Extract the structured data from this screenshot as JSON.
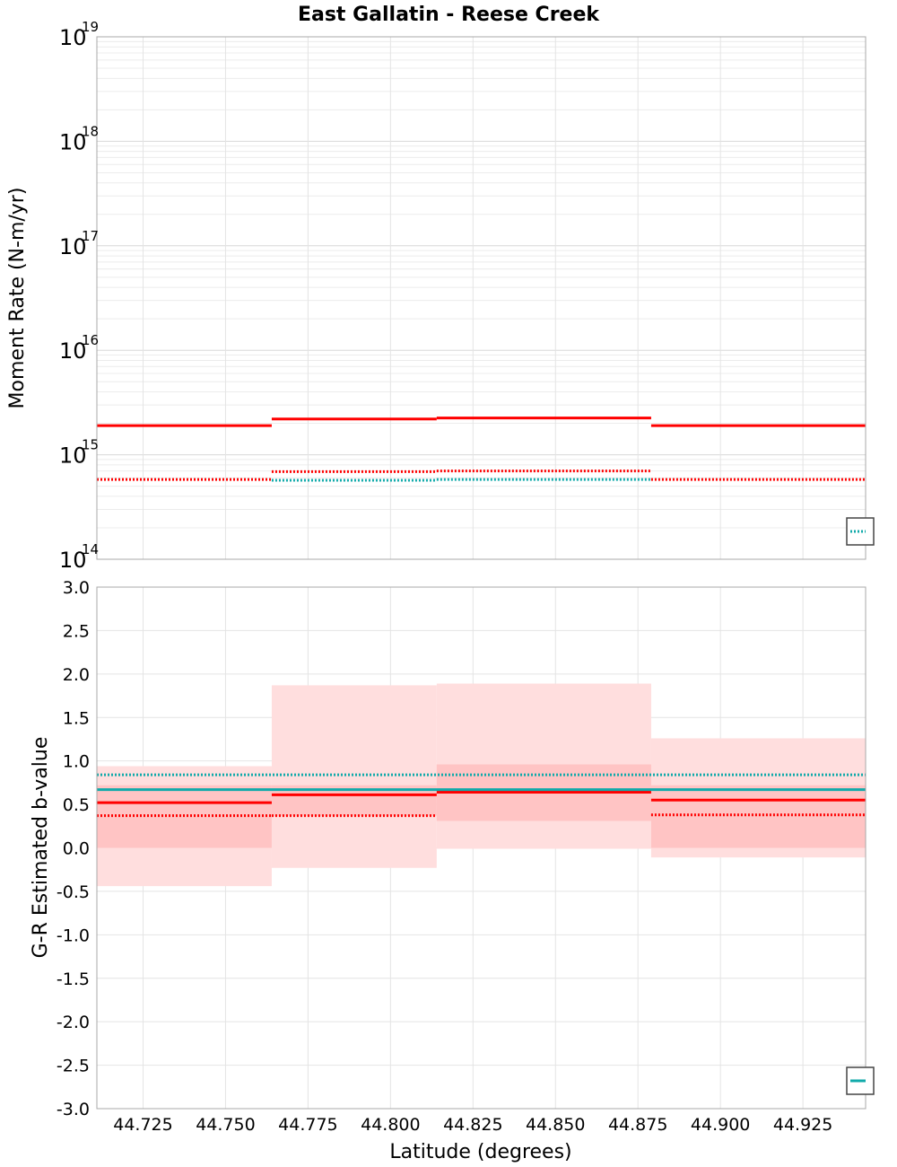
{
  "chart_data": {
    "title": "East Gallatin - Reese Creek",
    "xlabel": "Latitude (degrees)",
    "xlim": [
      44.711,
      44.944
    ],
    "x_ticks": [
      "44.725",
      "44.750",
      "44.775",
      "44.800",
      "44.825",
      "44.850",
      "44.875",
      "44.900",
      "44.925"
    ],
    "x_tick_values": [
      44.725,
      44.75,
      44.775,
      44.8,
      44.825,
      44.85,
      44.875,
      44.9,
      44.925
    ],
    "panels": [
      {
        "id": "moment",
        "type": "step-line",
        "scale": "log",
        "ylabel": "Moment Rate (N-m/yr)",
        "ylim_exp": [
          14,
          19
        ],
        "y_ticks": [
          {
            "base": "10",
            "exp": "19",
            "value_exp": 19
          },
          {
            "base": "10",
            "exp": "18",
            "value_exp": 18
          },
          {
            "base": "10",
            "exp": "17",
            "value_exp": 17
          },
          {
            "base": "10",
            "exp": "16",
            "value_exp": 16
          },
          {
            "base": "10",
            "exp": "15",
            "value_exp": 15
          },
          {
            "base": "10",
            "exp": "14",
            "value_exp": 14
          }
        ],
        "series": [
          {
            "name": "solid-red",
            "color": "#ff0000",
            "style": "solid",
            "segments": [
              {
                "x0": 44.711,
                "x1": 44.764,
                "y": 1900000000000000.0
              },
              {
                "x0": 44.764,
                "x1": 44.814,
                "y": 2200000000000000.0
              },
              {
                "x0": 44.814,
                "x1": 44.879,
                "y": 2250000000000000.0
              },
              {
                "x0": 44.879,
                "x1": 44.944,
                "y": 1900000000000000.0
              }
            ]
          },
          {
            "name": "dotted-red",
            "color": "#ff0000",
            "style": "dotted",
            "segments": [
              {
                "x0": 44.711,
                "x1": 44.764,
                "y": 580000000000000.0
              },
              {
                "x0": 44.764,
                "x1": 44.814,
                "y": 690000000000000.0
              },
              {
                "x0": 44.814,
                "x1": 44.879,
                "y": 700000000000000.0
              },
              {
                "x0": 44.879,
                "x1": 44.944,
                "y": 580000000000000.0
              }
            ]
          },
          {
            "name": "dotted-teal",
            "color": "#11aaaa",
            "style": "dotted",
            "segments": [
              {
                "x0": 44.764,
                "x1": 44.814,
                "y": 570000000000000.0
              },
              {
                "x0": 44.814,
                "x1": 44.879,
                "y": 580000000000000.0
              }
            ]
          }
        ],
        "legend": {
          "placement": "bottom-right",
          "color": "#11aaaa",
          "style": "dotted"
        }
      },
      {
        "id": "bvalue",
        "type": "step-line",
        "scale": "linear",
        "ylabel": "G-R Estimated b-value",
        "ylim": [
          -3.0,
          3.0
        ],
        "y_ticks": [
          "3.0",
          "2.5",
          "2.0",
          "1.5",
          "1.0",
          "0.5",
          "0.0",
          "-0.5",
          "-1.0",
          "-1.5",
          "-2.0",
          "-2.5",
          "-3.0"
        ],
        "y_tick_values": [
          3.0,
          2.5,
          2.0,
          1.5,
          1.0,
          0.5,
          0.0,
          -0.5,
          -1.0,
          -1.5,
          -2.0,
          -2.5,
          -3.0
        ],
        "bands_outer": [
          {
            "x0": 44.711,
            "x1": 44.764,
            "y0": -0.44,
            "y1": 0.94
          },
          {
            "x0": 44.764,
            "x1": 44.814,
            "y0": -0.23,
            "y1": 1.87
          },
          {
            "x0": 44.814,
            "x1": 44.879,
            "y0": -0.01,
            "y1": 1.89
          },
          {
            "x0": 44.879,
            "x1": 44.944,
            "y0": -0.11,
            "y1": 1.26
          }
        ],
        "bands_inner": [
          {
            "x0": 44.711,
            "x1": 44.764,
            "y0": 0.0,
            "y1": 0.72
          },
          {
            "x0": 44.764,
            "x1": 44.814,
            "y0": 0.37,
            "y1": 0.72
          },
          {
            "x0": 44.814,
            "x1": 44.879,
            "y0": 0.31,
            "y1": 0.96
          },
          {
            "x0": 44.879,
            "x1": 44.944,
            "y0": 0.0,
            "y1": 0.72
          }
        ],
        "series": [
          {
            "name": "solid-red",
            "color": "#ff0000",
            "style": "solid",
            "segments": [
              {
                "x0": 44.711,
                "x1": 44.764,
                "y": 0.52
              },
              {
                "x0": 44.764,
                "x1": 44.814,
                "y": 0.61
              },
              {
                "x0": 44.814,
                "x1": 44.879,
                "y": 0.64
              },
              {
                "x0": 44.879,
                "x1": 44.944,
                "y": 0.55
              }
            ]
          },
          {
            "name": "dotted-red",
            "color": "#ff0000",
            "style": "dotted",
            "segments": [
              {
                "x0": 44.711,
                "x1": 44.764,
                "y": 0.37
              },
              {
                "x0": 44.764,
                "x1": 44.814,
                "y": 0.37
              },
              {
                "x0": 44.879,
                "x1": 44.944,
                "y": 0.38
              }
            ]
          },
          {
            "name": "solid-teal",
            "color": "#11aaaa",
            "style": "solid",
            "segments": [
              {
                "x0": 44.711,
                "x1": 44.944,
                "y": 0.67
              }
            ]
          },
          {
            "name": "dotted-teal",
            "color": "#11aaaa",
            "style": "dotted",
            "segments": [
              {
                "x0": 44.711,
                "x1": 44.944,
                "y": 0.84
              }
            ]
          }
        ],
        "legend": {
          "placement": "bottom-right",
          "color": "#11aaaa",
          "style": "solid"
        }
      }
    ]
  }
}
